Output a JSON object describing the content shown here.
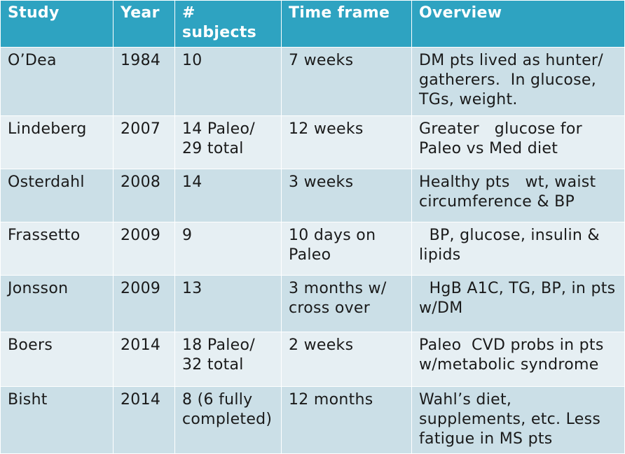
{
  "headers": [
    "Study",
    "Year",
    "# subjects",
    "Time frame",
    "Overview"
  ],
  "rows": [
    {
      "study": "O’Dea",
      "year": "1984",
      "subjects": "10",
      "timeframe": "7 weeks",
      "overview": "DM pts lived as hunter/ gatherers.  In glucose, TGs, weight."
    },
    {
      "study": "Lindeberg",
      "year": "2007",
      "subjects": "14 Paleo/ 29 total",
      "timeframe": "12 weeks",
      "overview": "Greater   glucose for Paleo vs Med diet"
    },
    {
      "study": "Osterdahl",
      "year": "2008",
      "subjects": "14",
      "timeframe": "3 weeks",
      "overview": "Healthy pts   wt, waist circumference & BP"
    },
    {
      "study": "Frassetto",
      "year": "2009",
      "subjects": "9",
      "timeframe": "10 days on Paleo",
      "overview": "  BP, glucose, insulin & lipids"
    },
    {
      "study": "Jonsson",
      "year": "2009",
      "subjects": "13",
      "timeframe": "3 months w/ cross over",
      "overview": "  HgB A1C, TG, BP, in pts w/DM"
    },
    {
      "study": "Boers",
      "year": "2014",
      "subjects": "18 Paleo/ 32 total",
      "timeframe": "2 weeks",
      "overview": "Paleo  CVD probs in pts w/metabolic syndrome"
    },
    {
      "study": "Bisht",
      "year": "2014",
      "subjects": "8 (6 fully completed)",
      "timeframe": "12 months",
      "overview": "Wahl’s diet, supplements, etc. Less fatigue in MS pts"
    }
  ],
  "colors": {
    "header": "#2ea3c1",
    "row_dark": "#cbdfe7",
    "row_light": "#e6eff3"
  }
}
